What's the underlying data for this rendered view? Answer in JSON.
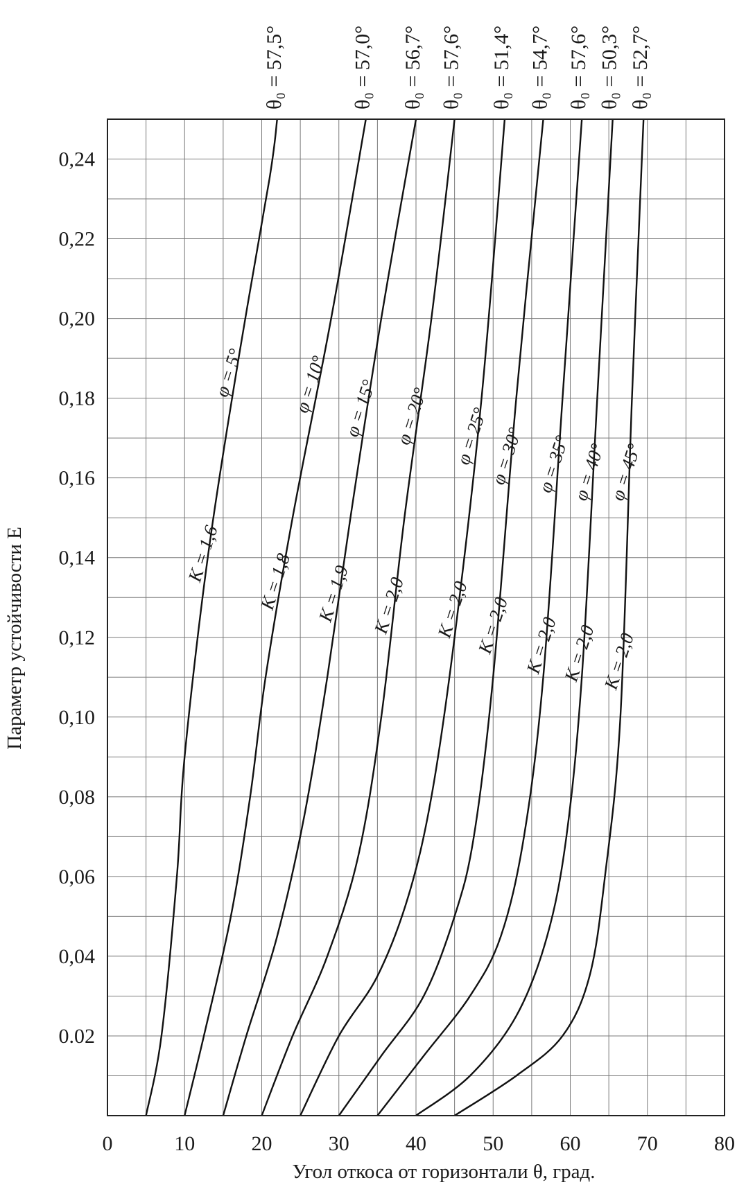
{
  "chart_data": {
    "type": "line",
    "title": "",
    "xlabel": "Угол откоса от горизонтали θ, град.",
    "ylabel": "Параметр устойчивости E",
    "xlim": [
      0,
      80
    ],
    "ylim": [
      0,
      0.25
    ],
    "x_ticks": [
      0,
      10,
      20,
      30,
      40,
      50,
      60,
      70,
      80
    ],
    "x_tick_labels": [
      "0",
      "10",
      "20",
      "30",
      "40",
      "50",
      "60",
      "70",
      "80"
    ],
    "y_ticks": [
      0.02,
      0.04,
      0.06,
      0.08,
      0.1,
      0.12,
      0.14,
      0.16,
      0.18,
      0.2,
      0.22,
      0.24
    ],
    "y_tick_labels": [
      "0.02",
      "0,04",
      "0,06",
      "0,08",
      "0,10",
      "0,12",
      "0,14",
      "0,16",
      "0,18",
      "0,20",
      "0,22",
      "0,24"
    ],
    "grid": true,
    "minor_grid": true,
    "series": [
      {
        "phi_label": "φ = 5°",
        "K_label": "K = 1,6",
        "theta_label": "θ₀ = 57,5°",
        "x": [
          5,
          7,
          9,
          10,
          13,
          17,
          21,
          22
        ],
        "y": [
          0,
          0.02,
          0.06,
          0.09,
          0.14,
          0.19,
          0.235,
          0.25
        ]
      },
      {
        "phi_label": "φ = 10°",
        "K_label": "K = 1,8",
        "theta_label": "θ₀ = 57,0°",
        "x": [
          10,
          12.5,
          16,
          18.5,
          20.5,
          24,
          29,
          33.5
        ],
        "y": [
          0,
          0.02,
          0.05,
          0.08,
          0.11,
          0.15,
          0.2,
          0.25
        ]
      },
      {
        "phi_label": "φ = 15°",
        "K_label": "K = 1,9",
        "theta_label": "θ₀ = 56,7°",
        "x": [
          15,
          18,
          22,
          25.5,
          28.5,
          31.5,
          35.5,
          40
        ],
        "y": [
          0,
          0.02,
          0.045,
          0.075,
          0.11,
          0.15,
          0.2,
          0.25
        ]
      },
      {
        "phi_label": "φ = 20°",
        "K_label": "K = 2,0",
        "theta_label": "θ₀ = 57,6°",
        "x": [
          20,
          24,
          28.5,
          32.5,
          35.5,
          38.5,
          42,
          45
        ],
        "y": [
          0,
          0.02,
          0.04,
          0.065,
          0.1,
          0.15,
          0.2,
          0.25
        ]
      },
      {
        "phi_label": "φ = 25°",
        "K_label": "K = 2,0",
        "theta_label": "θ₀ = 51,4°",
        "x": [
          25,
          30,
          35,
          39,
          42,
          45,
          48.5,
          51.5
        ],
        "y": [
          0,
          0.02,
          0.035,
          0.055,
          0.08,
          0.12,
          0.18,
          0.25
        ]
      },
      {
        "phi_label": "φ = 30°",
        "K_label": "K = 2,0",
        "theta_label": "θ₀ = 54,7°",
        "x": [
          30,
          35.5,
          41,
          45,
          47.5,
          50,
          53,
          56.5
        ],
        "y": [
          0,
          0.015,
          0.03,
          0.05,
          0.07,
          0.11,
          0.18,
          0.25
        ]
      },
      {
        "phi_label": "φ = 35°",
        "K_label": "K = 2,0",
        "theta_label": "θ₀ = 57,6°",
        "x": [
          35,
          41,
          47,
          51,
          54,
          56.5,
          59,
          61.5
        ],
        "y": [
          0,
          0.015,
          0.03,
          0.045,
          0.07,
          0.11,
          0.18,
          0.25
        ]
      },
      {
        "phi_label": "φ = 40°",
        "K_label": "K = 2,0",
        "theta_label": "θ₀ = 50,3°",
        "x": [
          40,
          47,
          53,
          57,
          59.5,
          61.5,
          63.5,
          65.5
        ],
        "y": [
          0,
          0.01,
          0.025,
          0.045,
          0.07,
          0.11,
          0.18,
          0.25
        ]
      },
      {
        "phi_label": "φ = 45°",
        "K_label": "K = 2,0",
        "theta_label": "θ₀ = 52,7°",
        "x": [
          45,
          53,
          59,
          62.5,
          64.5,
          66.5,
          68,
          69.5
        ],
        "y": [
          0,
          0.01,
          0.02,
          0.035,
          0.06,
          0.1,
          0.18,
          0.25
        ]
      }
    ]
  }
}
